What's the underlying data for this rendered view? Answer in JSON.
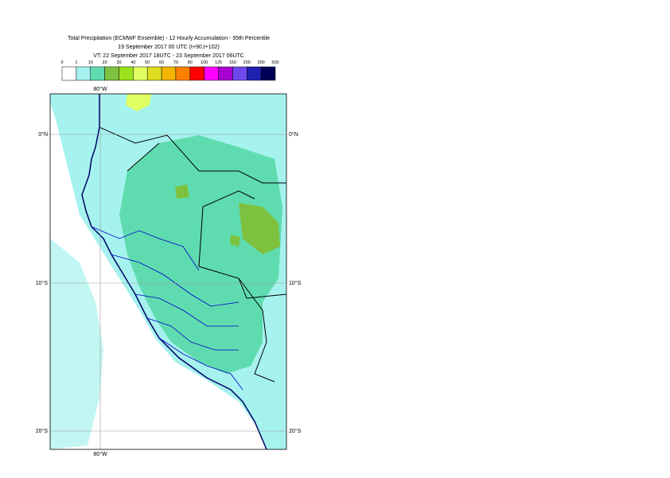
{
  "header": {
    "title": "Total Precipitation (ECMWF Ensemble) - 12 Hourly Accumulation - 95th Percentile",
    "base_time": "19 September 2017 00 UTC (t+90,t+102)",
    "valid_time": "VT: 22 September 2017 18UTC - 23 September 2017 06UTC"
  },
  "colorbar": {
    "levels": [
      0,
      1,
      10,
      20,
      30,
      40,
      50,
      60,
      70,
      80,
      100,
      125,
      150,
      200,
      300,
      500
    ],
    "colors": [
      "#ffffff",
      "#a6f2ee",
      "#5fdcaf",
      "#7ec13e",
      "#9be21c",
      "#e2ff62",
      "#dede20",
      "#f2b400",
      "#ff8000",
      "#ff0000",
      "#ff00ff",
      "#a800d0",
      "#7048f0",
      "#2020b0",
      "#000058"
    ]
  },
  "map": {
    "lon_label_top": "80°W",
    "lon_label_bottom": "80°W",
    "lat_labels_left": [
      "0°N",
      "10°S",
      "20°S"
    ],
    "lat_labels_right": [
      "0°N",
      "10°S",
      "20°S"
    ]
  }
}
